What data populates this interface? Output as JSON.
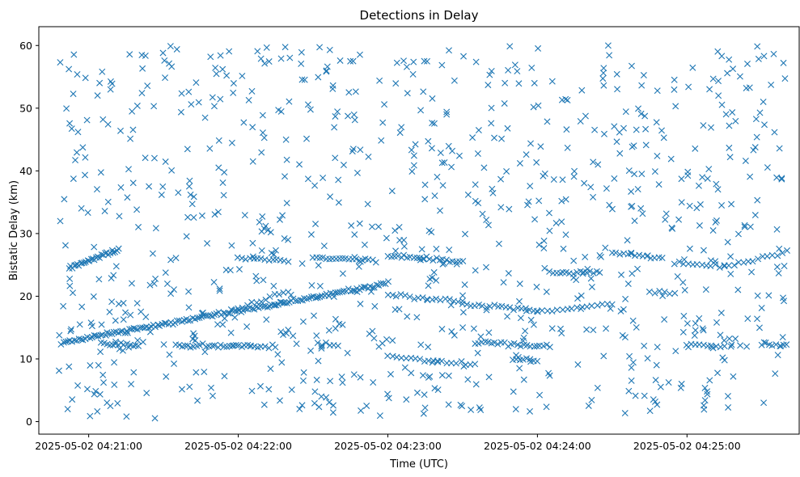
{
  "chart_data": {
    "type": "scatter",
    "title": "Detections in Delay",
    "xlabel": "Time (UTC)",
    "ylabel": "Bistatic Delay (km)",
    "marker": "x",
    "color": "#1f77b4",
    "grid": false,
    "legend": "none",
    "x_range": [
      "2025-05-02 04:20:40",
      "2025-05-02 04:25:45"
    ],
    "ylim": [
      -2,
      63
    ],
    "x_ticks": [
      "2025-05-02 04:21:00",
      "2025-05-02 04:22:00",
      "2025-05-02 04:23:00",
      "2025-05-02 04:24:00",
      "2025-05-02 04:25:00"
    ],
    "y_ticks": [
      0,
      10,
      20,
      30,
      40,
      50,
      60
    ],
    "x_time_span": [
      "2025-05-02 04:20:48",
      "2025-05-02 04:25:40"
    ],
    "tracks": [
      {
        "x_start": "2025-05-02 04:20:49",
        "x_end": "2025-05-02 04:23:00",
        "y_start": 12.6,
        "y_end": 22.0,
        "count": 150
      },
      {
        "x_start": "2025-05-02 04:20:52",
        "x_end": "2025-05-02 04:21:12",
        "y_start": 24.5,
        "y_end": 27.5,
        "count": 30
      },
      {
        "x_start": "2025-05-02 04:22:00",
        "x_end": "2025-05-02 04:22:20",
        "y_start": 26.0,
        "y_end": 25.7,
        "count": 14
      },
      {
        "x_start": "2025-05-02 04:22:30",
        "x_end": "2025-05-02 04:22:55",
        "y_start": 26.1,
        "y_end": 25.6,
        "count": 20
      },
      {
        "x_start": "2025-05-02 04:23:00",
        "x_end": "2025-05-02 04:23:30",
        "y_start": 26.5,
        "y_end": 25.5,
        "count": 24
      },
      {
        "x_start": "2025-05-02 04:22:00",
        "x_end": "2025-05-02 04:22:20",
        "y_start": 18.0,
        "y_end": 20.8,
        "count": 12
      },
      {
        "x_start": "2025-05-02 04:23:00",
        "x_end": "2025-05-02 04:23:30",
        "y_start": 20.2,
        "y_end": 19.2,
        "count": 18
      },
      {
        "x_start": "2025-05-02 04:23:30",
        "x_end": "2025-05-02 04:24:00",
        "y_start": 18.7,
        "y_end": 17.8,
        "count": 20
      },
      {
        "x_start": "2025-05-02 04:24:00",
        "x_end": "2025-05-02 04:24:30",
        "y_start": 17.5,
        "y_end": 18.8,
        "count": 16
      },
      {
        "x_start": "2025-05-02 04:21:05",
        "x_end": "2025-05-02 04:21:20",
        "y_start": 12.3,
        "y_end": 12.2,
        "count": 14
      },
      {
        "x_start": "2025-05-02 04:21:35",
        "x_end": "2025-05-02 04:22:05",
        "y_start": 12.2,
        "y_end": 12.0,
        "count": 26
      },
      {
        "x_start": "2025-05-02 04:22:05",
        "x_end": "2025-05-02 04:22:15",
        "y_start": 12.0,
        "y_end": 11.9,
        "count": 8
      },
      {
        "x_start": "2025-05-02 04:22:32",
        "x_end": "2025-05-02 04:22:40",
        "y_start": 12.4,
        "y_end": 12.2,
        "count": 6
      },
      {
        "x_start": "2025-05-02 04:23:35",
        "x_end": "2025-05-02 04:24:05",
        "y_start": 12.6,
        "y_end": 12.0,
        "count": 24
      },
      {
        "x_start": "2025-05-02 04:25:00",
        "x_end": "2025-05-02 04:25:15",
        "y_start": 12.3,
        "y_end": 12.0,
        "count": 10
      },
      {
        "x_start": "2025-05-02 04:25:30",
        "x_end": "2025-05-02 04:25:40",
        "y_start": 12.5,
        "y_end": 12.2,
        "count": 8
      },
      {
        "x_start": "2025-05-02 04:23:00",
        "x_end": "2025-05-02 04:23:20",
        "y_start": 10.5,
        "y_end": 9.5,
        "count": 12
      },
      {
        "x_start": "2025-05-02 04:23:18",
        "x_end": "2025-05-02 04:23:35",
        "y_start": 9.5,
        "y_end": 9.2,
        "count": 10
      },
      {
        "x_start": "2025-05-02 04:23:50",
        "x_end": "2025-05-02 04:24:00",
        "y_start": 10.0,
        "y_end": 9.8,
        "count": 8
      },
      {
        "x_start": "2025-05-02 04:24:05",
        "x_end": "2025-05-02 04:24:25",
        "y_start": 23.8,
        "y_end": 23.8,
        "count": 16
      },
      {
        "x_start": "2025-05-02 04:24:30",
        "x_end": "2025-05-02 04:24:50",
        "y_start": 27.0,
        "y_end": 26.0,
        "count": 14
      },
      {
        "x_start": "2025-05-02 04:24:55",
        "x_end": "2025-05-02 04:25:15",
        "y_start": 25.3,
        "y_end": 24.7,
        "count": 12
      },
      {
        "x_start": "2025-05-02 04:25:15",
        "x_end": "2025-05-02 04:25:40",
        "y_start": 24.7,
        "y_end": 27.0,
        "count": 14
      },
      {
        "x_start": "2025-05-02 04:24:45",
        "x_end": "2025-05-02 04:24:55",
        "y_start": 20.8,
        "y_end": 20.5,
        "count": 6
      }
    ],
    "scattered_detections": {
      "count": 880,
      "y_range": [
        0.5,
        60
      ],
      "x_range": [
        "2025-05-02 04:20:48",
        "2025-05-02 04:25:40"
      ]
    }
  }
}
